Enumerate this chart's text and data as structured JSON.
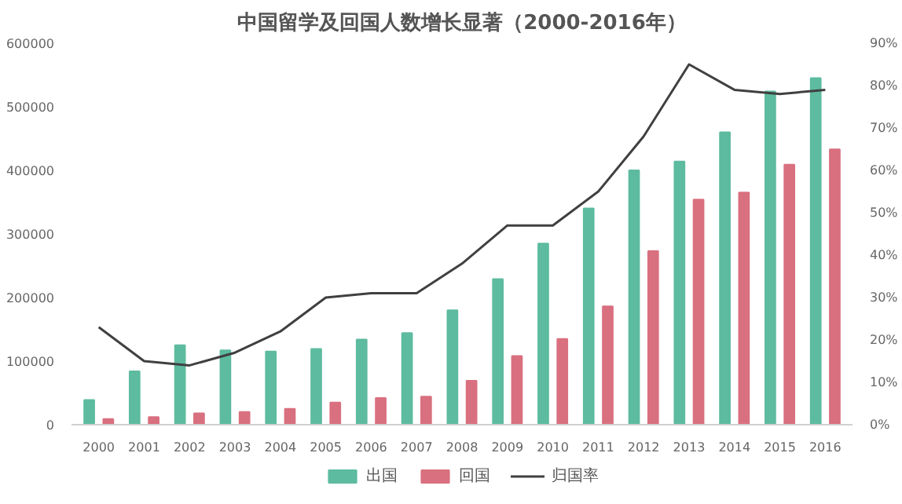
{
  "chart_data": {
    "type": "bar",
    "title": "中国留学及回国人数增长显著（2000-2016年）",
    "categories": [
      "2000",
      "2001",
      "2002",
      "2003",
      "2004",
      "2005",
      "2006",
      "2007",
      "2008",
      "2009",
      "2010",
      "2011",
      "2012",
      "2013",
      "2014",
      "2015",
      "2016"
    ],
    "series": [
      {
        "name": "出国",
        "color": "#5dbb9f",
        "values": [
          39000,
          84000,
          125000,
          117000,
          115000,
          119000,
          134000,
          144000,
          180000,
          229000,
          285000,
          340000,
          400000,
          414000,
          460000,
          524000,
          545000
        ]
      },
      {
        "name": "回国",
        "color": "#d9707f",
        "values": [
          9000,
          12000,
          18000,
          20000,
          25000,
          35000,
          42000,
          44000,
          69000,
          108000,
          135000,
          186000,
          273000,
          354000,
          365000,
          409000,
          433000
        ]
      },
      {
        "name": "归国率",
        "type": "line",
        "axis": "y2",
        "color": "#404040",
        "values": [
          23,
          15,
          14,
          17,
          22,
          30,
          31,
          31,
          38,
          47,
          47,
          55,
          68,
          85,
          79,
          78,
          79
        ]
      }
    ],
    "ylim": [
      0,
      600000
    ],
    "yticks": [
      0,
      100000,
      200000,
      300000,
      400000,
      500000,
      600000
    ],
    "y2lim": [
      0,
      90
    ],
    "y2ticks": [
      {
        "value": 0,
        "label": "0%"
      },
      {
        "value": 10,
        "label": "10%"
      },
      {
        "value": 20,
        "label": "20%"
      },
      {
        "value": 30,
        "label": "30%"
      },
      {
        "value": 40,
        "label": "40%"
      },
      {
        "value": 50,
        "label": "50%"
      },
      {
        "value": 60,
        "label": "60%"
      },
      {
        "value": 70,
        "label": "70%"
      },
      {
        "value": 80,
        "label": "80%"
      },
      {
        "value": 90,
        "label": "90%"
      }
    ],
    "grid": false,
    "legend": "bottom"
  }
}
